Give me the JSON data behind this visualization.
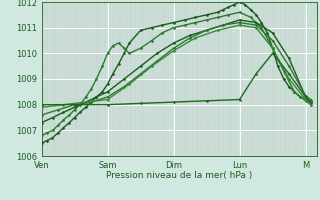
{
  "xlabel": "Pression niveau de la mer( hPa )",
  "ylim": [
    1006,
    1012
  ],
  "xlim": [
    0,
    4.17
  ],
  "bg_color": "#d0e8e0",
  "plot_bg_color": "#c4e4dc",
  "grid_color_major": "#a0c8c0",
  "grid_color_minor": "#b8ddd8",
  "grid_color_vert_major": "#ffffff",
  "xtick_labels": [
    "Ven",
    "Sam",
    "Dim",
    "Lun",
    "M"
  ],
  "xtick_pos": [
    0,
    1,
    2,
    3,
    4
  ],
  "ytick_labels": [
    "1006",
    "1007",
    "1008",
    "1009",
    "1010",
    "1011",
    "1012"
  ],
  "ytick_pos": [
    1006,
    1007,
    1008,
    1009,
    1010,
    1011,
    1012
  ],
  "series": [
    {
      "x": [
        0.0,
        0.08,
        0.16,
        0.25,
        0.33,
        0.42,
        0.5,
        0.58,
        0.67,
        0.75,
        0.83,
        0.92,
        1.0,
        1.08,
        1.17,
        1.25,
        1.33,
        1.5,
        1.67,
        1.83,
        2.0,
        2.17,
        2.33,
        2.5,
        2.67,
        2.75,
        2.83,
        2.92,
        3.0,
        3.08,
        3.17,
        3.25,
        3.33,
        3.42,
        3.5,
        3.58,
        3.67,
        3.75,
        3.83,
        3.92,
        4.0,
        4.08
      ],
      "y": [
        1006.5,
        1006.6,
        1006.7,
        1006.9,
        1007.1,
        1007.3,
        1007.5,
        1007.7,
        1007.9,
        1008.1,
        1008.3,
        1008.5,
        1008.8,
        1009.2,
        1009.6,
        1010.0,
        1010.4,
        1010.9,
        1011.0,
        1011.1,
        1011.2,
        1011.3,
        1011.4,
        1011.5,
        1011.6,
        1011.7,
        1011.8,
        1011.9,
        1012.0,
        1011.9,
        1011.7,
        1011.5,
        1011.2,
        1010.8,
        1010.2,
        1009.5,
        1009.0,
        1008.7,
        1008.5,
        1008.3,
        1008.2,
        1008.1
      ],
      "color": "#1a5c1a",
      "lw": 1.0,
      "marker": "D",
      "ms": 1.5
    },
    {
      "x": [
        0.0,
        0.08,
        0.17,
        0.25,
        0.33,
        0.42,
        0.5,
        0.58,
        0.67,
        0.75,
        0.83,
        0.92,
        1.0,
        1.08,
        1.17,
        1.25,
        1.33,
        1.5,
        1.67,
        1.83,
        2.0,
        2.17,
        2.33,
        2.5,
        2.67,
        2.83,
        3.0,
        3.17,
        3.33,
        3.5,
        3.67,
        3.83,
        4.0,
        4.08
      ],
      "y": [
        1006.8,
        1006.9,
        1007.0,
        1007.2,
        1007.4,
        1007.6,
        1007.8,
        1008.0,
        1008.3,
        1008.6,
        1009.0,
        1009.5,
        1010.0,
        1010.3,
        1010.4,
        1010.2,
        1010.0,
        1010.2,
        1010.5,
        1010.8,
        1011.0,
        1011.1,
        1011.2,
        1011.3,
        1011.4,
        1011.5,
        1011.6,
        1011.4,
        1011.0,
        1010.2,
        1009.3,
        1008.5,
        1008.15,
        1008.0
      ],
      "color": "#2d7a2d",
      "lw": 1.0,
      "marker": "D",
      "ms": 1.5
    },
    {
      "x": [
        0.0,
        0.17,
        0.33,
        0.5,
        0.67,
        0.83,
        1.0,
        1.25,
        1.5,
        1.75,
        2.0,
        2.25,
        2.5,
        2.75,
        3.0,
        3.25,
        3.5,
        3.75,
        4.0,
        4.08
      ],
      "y": [
        1007.3,
        1007.5,
        1007.7,
        1007.9,
        1008.1,
        1008.3,
        1008.5,
        1009.0,
        1009.5,
        1010.0,
        1010.4,
        1010.7,
        1010.9,
        1011.1,
        1011.3,
        1011.2,
        1010.8,
        1009.8,
        1008.3,
        1008.1
      ],
      "color": "#1a5c1a",
      "lw": 1.0,
      "marker": "D",
      "ms": 1.5
    },
    {
      "x": [
        0.0,
        0.25,
        0.5,
        0.75,
        1.0,
        1.25,
        1.5,
        1.75,
        2.0,
        2.25,
        2.5,
        2.75,
        3.0,
        3.25,
        3.5,
        3.75,
        4.0,
        4.08
      ],
      "y": [
        1007.6,
        1007.8,
        1008.0,
        1008.1,
        1008.3,
        1008.7,
        1009.2,
        1009.7,
        1010.2,
        1010.6,
        1010.9,
        1011.1,
        1011.2,
        1011.1,
        1010.5,
        1009.5,
        1008.35,
        1008.2
      ],
      "color": "#2d7a2d",
      "lw": 1.0,
      "marker": "D",
      "ms": 1.5
    },
    {
      "x": [
        0.0,
        0.33,
        0.67,
        1.0,
        1.33,
        1.67,
        2.0,
        2.33,
        2.67,
        3.0,
        3.25,
        3.5,
        3.75,
        4.0,
        4.08
      ],
      "y": [
        1007.9,
        1008.0,
        1008.1,
        1008.2,
        1008.8,
        1009.5,
        1010.1,
        1010.6,
        1010.9,
        1011.1,
        1011.0,
        1010.2,
        1009.0,
        1008.2,
        1008.0
      ],
      "color": "#3a8a3a",
      "lw": 1.0,
      "marker": "D",
      "ms": 1.5
    },
    {
      "x": [
        0.0,
        0.5,
        1.0,
        1.5,
        2.0,
        2.5,
        3.0,
        3.25,
        3.5,
        3.75,
        4.0,
        4.08
      ],
      "y": [
        1008.0,
        1008.0,
        1008.0,
        1008.05,
        1008.1,
        1008.15,
        1008.2,
        1009.2,
        1010.0,
        1009.2,
        1008.3,
        1008.1
      ],
      "color": "#1a6b1a",
      "lw": 1.0,
      "marker": "D",
      "ms": 1.5
    }
  ]
}
